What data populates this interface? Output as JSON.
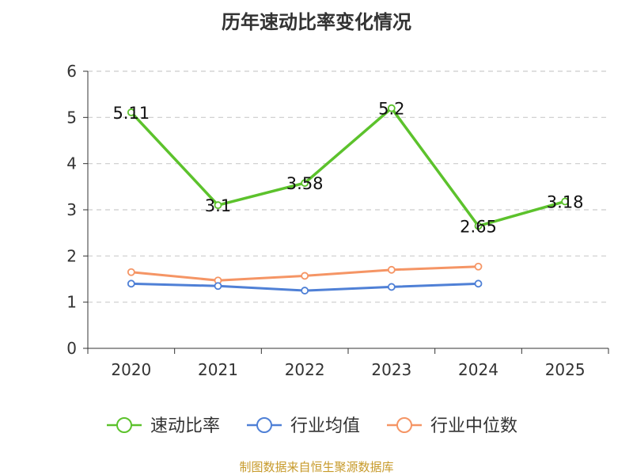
{
  "chart_data": {
    "type": "line",
    "title": "历年速动比率变化情况",
    "categories": [
      "2020",
      "2021",
      "2022",
      "2023",
      "2024",
      "2025"
    ],
    "ylim": [
      0,
      6
    ],
    "yticks": [
      "0",
      "1",
      "2",
      "3",
      "4",
      "5",
      "6"
    ],
    "grid": true,
    "legend_position": "bottom",
    "series": [
      {
        "name": "速动比率",
        "color": "#5cc22c",
        "values": [
          5.11,
          3.1,
          3.58,
          5.2,
          2.65,
          3.18
        ],
        "labels": [
          "5.11",
          "3.1",
          "3.58",
          "5.2",
          "2.65",
          "3.18"
        ]
      },
      {
        "name": "行业均值",
        "color": "#4f80d6",
        "values": [
          1.4,
          1.35,
          1.25,
          1.33,
          1.4,
          null
        ]
      },
      {
        "name": "行业中位数",
        "color": "#f59565",
        "values": [
          1.65,
          1.47,
          1.57,
          1.7,
          1.77,
          null
        ]
      }
    ]
  },
  "footer": {
    "source": "制图数据来自恒生聚源数据库"
  }
}
